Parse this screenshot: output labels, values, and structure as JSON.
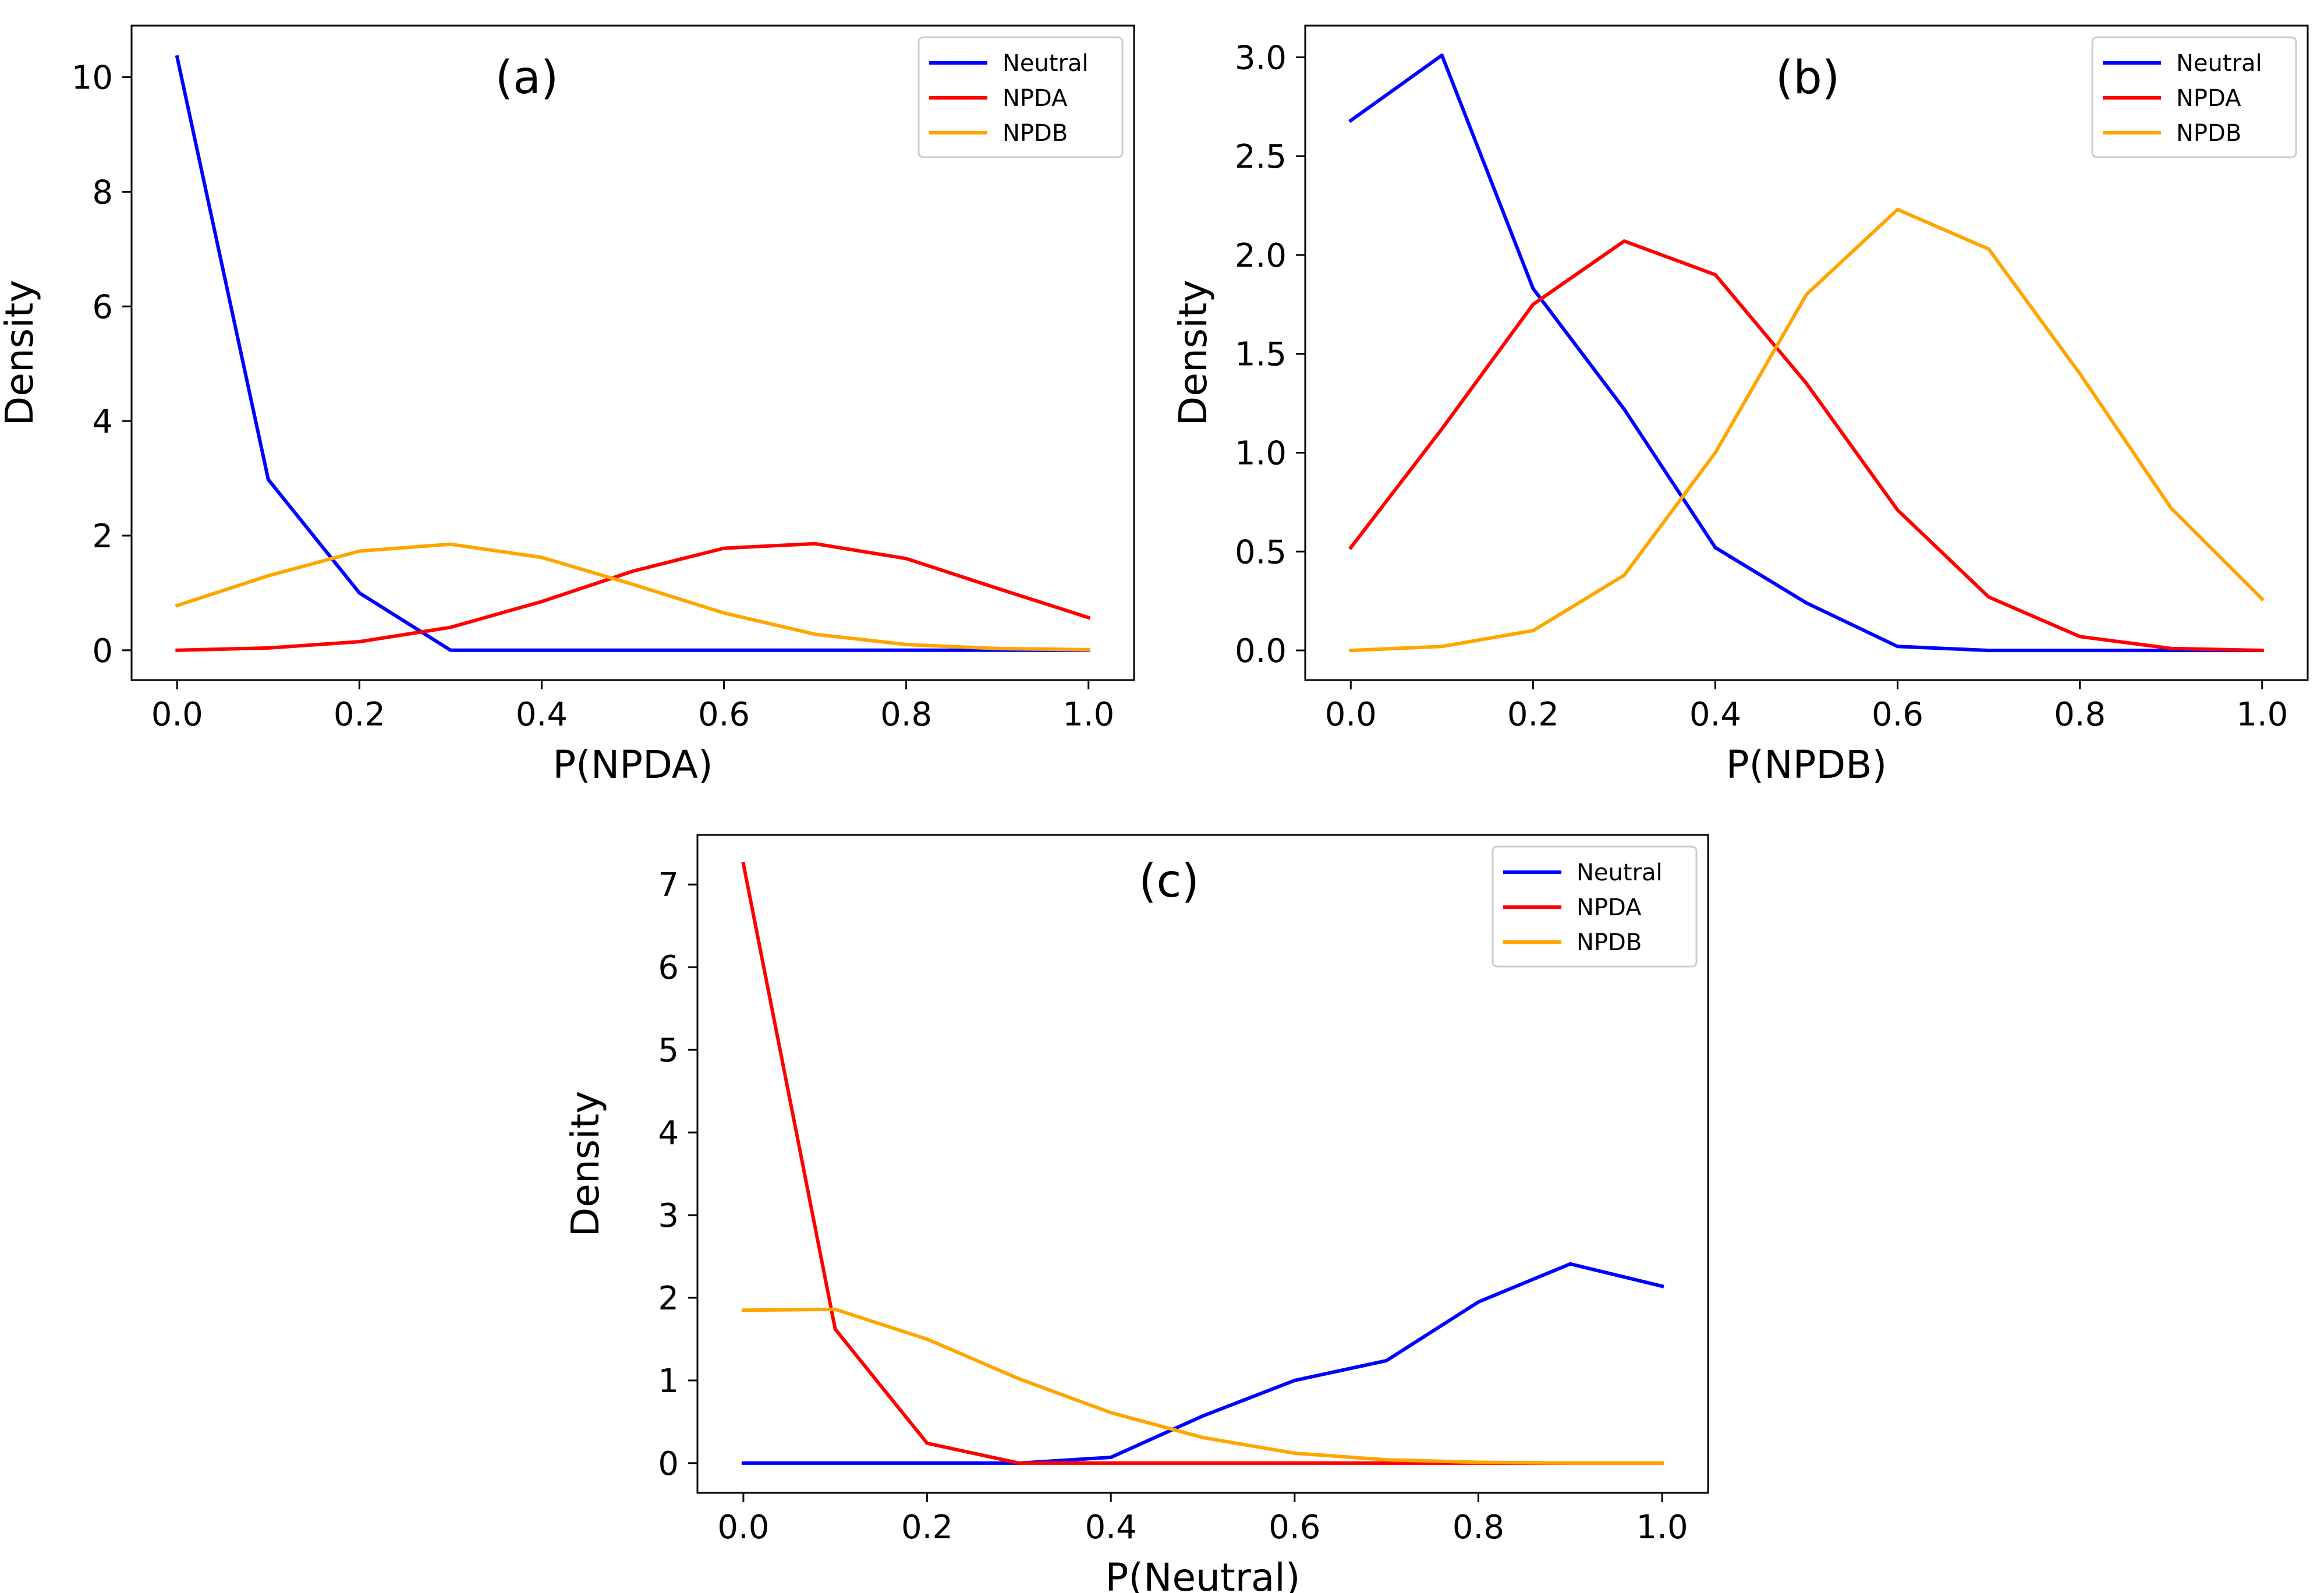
{
  "chart_data": [
    {
      "type": "line",
      "panel_label": "(a)",
      "xlabel": "P(NPDA)",
      "ylabel": "Density",
      "xlim": [
        -0.05,
        1.05
      ],
      "ylim": [
        -0.52,
        10.9
      ],
      "xticks": [
        0.0,
        0.2,
        0.4,
        0.6,
        0.8,
        1.0
      ],
      "xtick_labels": [
        "0.0",
        "0.2",
        "0.4",
        "0.6",
        "0.8",
        "1.0"
      ],
      "yticks": [
        0,
        2,
        4,
        6,
        8,
        10
      ],
      "ytick_labels": [
        "0",
        "2",
        "4",
        "6",
        "8",
        "10"
      ],
      "legend_position": "top-right",
      "x": [
        0.0,
        0.1,
        0.2,
        0.3,
        0.4,
        0.5,
        0.6,
        0.7,
        0.8,
        0.9,
        1.0
      ],
      "series": [
        {
          "name": "Neutral",
          "color": "#0000ff",
          "values": [
            10.35,
            2.98,
            1.0,
            0.0,
            0.0,
            0.0,
            0.0,
            0.0,
            0.0,
            0.0,
            0.0
          ]
        },
        {
          "name": "NPDA",
          "color": "#ff0000",
          "values": [
            0.0,
            0.04,
            0.15,
            0.4,
            0.85,
            1.38,
            1.78,
            1.86,
            1.6,
            1.08,
            0.57
          ]
        },
        {
          "name": "NPDB",
          "color": "#ffa500",
          "values": [
            0.78,
            1.3,
            1.73,
            1.85,
            1.62,
            1.15,
            0.65,
            0.28,
            0.1,
            0.03,
            0.01
          ]
        }
      ]
    },
    {
      "type": "line",
      "panel_label": "(b)",
      "xlabel": "P(NPDB)",
      "ylabel": "Density",
      "xlim": [
        -0.05,
        1.05
      ],
      "ylim": [
        -0.15,
        3.16
      ],
      "xticks": [
        0.0,
        0.2,
        0.4,
        0.6,
        0.8,
        1.0
      ],
      "xtick_labels": [
        "0.0",
        "0.2",
        "0.4",
        "0.6",
        "0.8",
        "1.0"
      ],
      "yticks": [
        0.0,
        0.5,
        1.0,
        1.5,
        2.0,
        2.5,
        3.0
      ],
      "ytick_labels": [
        "0.0",
        "0.5",
        "1.0",
        "1.5",
        "2.0",
        "2.5",
        "3.0"
      ],
      "legend_position": "top-right",
      "x": [
        0.0,
        0.1,
        0.2,
        0.3,
        0.4,
        0.5,
        0.6,
        0.7,
        0.8,
        0.9,
        1.0
      ],
      "series": [
        {
          "name": "Neutral",
          "color": "#0000ff",
          "values": [
            2.68,
            3.01,
            1.83,
            1.22,
            0.52,
            0.24,
            0.02,
            0.0,
            0.0,
            0.0,
            0.0
          ]
        },
        {
          "name": "NPDA",
          "color": "#ff0000",
          "values": [
            0.52,
            1.12,
            1.75,
            2.07,
            1.9,
            1.35,
            0.71,
            0.27,
            0.07,
            0.01,
            0.0
          ]
        },
        {
          "name": "NPDB",
          "color": "#ffa500",
          "values": [
            0.0,
            0.02,
            0.1,
            0.38,
            1.0,
            1.8,
            2.23,
            2.03,
            1.4,
            0.72,
            0.26
          ]
        }
      ]
    },
    {
      "type": "line",
      "panel_label": "(c)",
      "xlabel": "P(Neutral)",
      "ylabel": "Density",
      "xlim": [
        -0.05,
        1.05
      ],
      "ylim": [
        -0.36,
        7.6
      ],
      "xticks": [
        0.0,
        0.2,
        0.4,
        0.6,
        0.8,
        1.0
      ],
      "xtick_labels": [
        "0.0",
        "0.2",
        "0.4",
        "0.6",
        "0.8",
        "1.0"
      ],
      "yticks": [
        0,
        1,
        2,
        3,
        4,
        5,
        6,
        7
      ],
      "ytick_labels": [
        "0",
        "1",
        "2",
        "3",
        "4",
        "5",
        "6",
        "7"
      ],
      "legend_position": "top-right",
      "x": [
        0.0,
        0.1,
        0.2,
        0.3,
        0.4,
        0.5,
        0.6,
        0.7,
        0.8,
        0.9,
        1.0
      ],
      "series": [
        {
          "name": "Neutral",
          "color": "#0000ff",
          "values": [
            0.0,
            0.0,
            0.0,
            0.0,
            0.07,
            0.57,
            1.0,
            1.24,
            1.95,
            2.41,
            2.14
          ]
        },
        {
          "name": "NPDA",
          "color": "#ff0000",
          "values": [
            7.25,
            1.62,
            0.24,
            0.0,
            0.0,
            0.0,
            0.0,
            0.0,
            0.0,
            0.0,
            0.0
          ]
        },
        {
          "name": "NPDB",
          "color": "#ffa500",
          "values": [
            1.85,
            1.86,
            1.5,
            1.02,
            0.61,
            0.31,
            0.12,
            0.04,
            0.01,
            0.0,
            0.0
          ]
        }
      ]
    }
  ]
}
